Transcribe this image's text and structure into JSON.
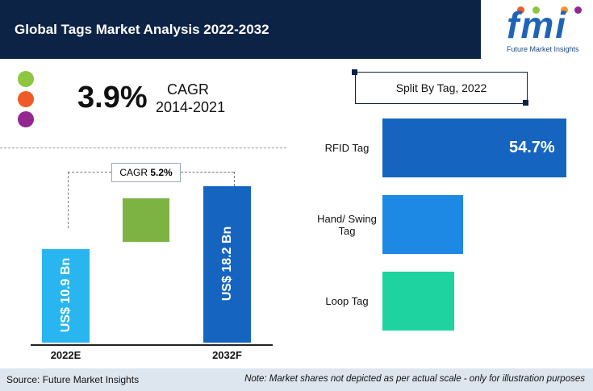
{
  "header": {
    "title": "Global Tags Market Analysis 2022-2032",
    "logo": "fmi",
    "logo_subtitle": "Future Market Insights"
  },
  "cagr_highlight": {
    "value": "3.9%",
    "label": "CAGR",
    "period": "2014-2021"
  },
  "chart_data": [
    {
      "type": "bar",
      "categories": [
        "2022E",
        "2032F"
      ],
      "values": [
        10.9,
        18.2
      ],
      "value_labels": [
        "US$ 10.9 Bn",
        "US$ 18.2 Bn"
      ],
      "colors": [
        "#29b6f0",
        "#1565c0"
      ],
      "annotation": {
        "label": "CAGR",
        "value": "5.2%"
      }
    },
    {
      "type": "hbar",
      "title": "Split By Tag, 2022",
      "categories": [
        "RFID Tag",
        "Hand/ Swing Tag",
        "Loop Tag"
      ],
      "values": [
        54.7,
        24.0,
        21.3
      ],
      "value_labels": [
        "54.7%",
        null,
        null
      ],
      "colors": [
        "#1565c0",
        "#1e88e5",
        "#1ed3a0"
      ]
    }
  ],
  "footer": {
    "source": "Source: Future Market Insights",
    "note": "Note: Market shares not depicted as per actual scale - only for illustration purposes"
  }
}
